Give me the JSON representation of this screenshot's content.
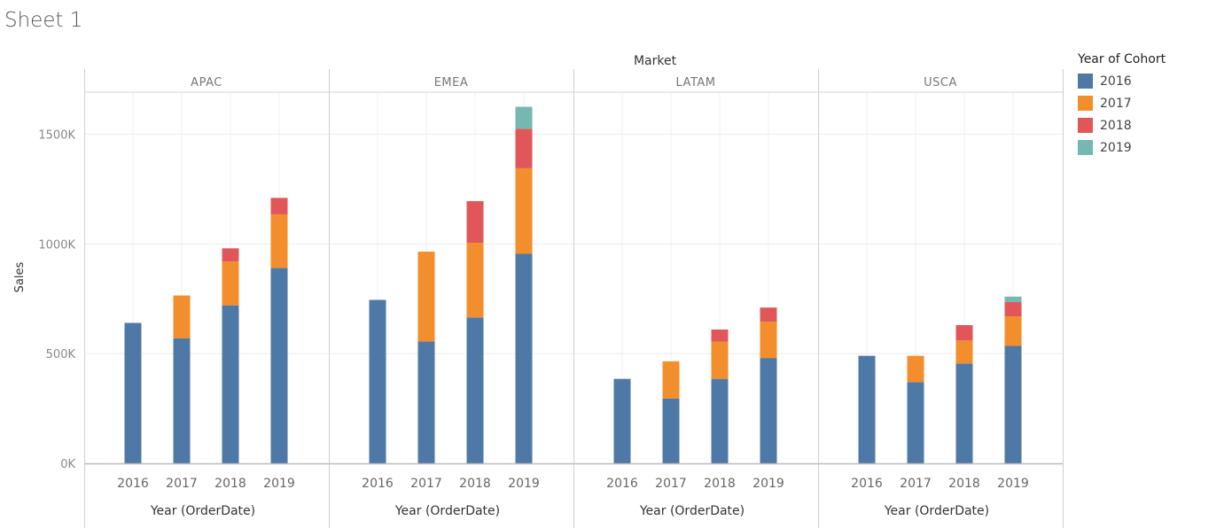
{
  "sheet_title": "Sheet 1",
  "legend": {
    "title": "Year of Cohort",
    "items": [
      {
        "label": "2016",
        "color": "#4e79a7"
      },
      {
        "label": "2017",
        "color": "#f28e2b"
      },
      {
        "label": "2018",
        "color": "#e15759"
      },
      {
        "label": "2019",
        "color": "#76b7b2"
      }
    ]
  },
  "chart_data": {
    "type": "bar",
    "stacked": true,
    "title": "Sheet 1",
    "column_header": "Market",
    "xlabel": "Year (OrderDate)",
    "ylabel": "Sales",
    "ylim": [
      0,
      1700000
    ],
    "yticks": [
      {
        "value": 0,
        "label": "0K"
      },
      {
        "value": 500000,
        "label": "500K"
      },
      {
        "value": 1000000,
        "label": "1000K"
      },
      {
        "value": 1500000,
        "label": "1500K"
      }
    ],
    "categories": [
      "2016",
      "2017",
      "2018",
      "2019"
    ],
    "cohorts": [
      "2016",
      "2017",
      "2018",
      "2019"
    ],
    "colors": [
      "#4e79a7",
      "#f28e2b",
      "#e15759",
      "#76b7b2"
    ],
    "panels": [
      {
        "market": "APAC",
        "values": [
          [
            640000,
            0,
            0,
            0
          ],
          [
            570000,
            195000,
            0,
            0
          ],
          [
            720000,
            200000,
            60000,
            0
          ],
          [
            890000,
            245000,
            75000,
            0
          ]
        ]
      },
      {
        "market": "EMEA",
        "values": [
          [
            745000,
            0,
            0,
            0
          ],
          [
            555000,
            410000,
            0,
            0
          ],
          [
            665000,
            340000,
            190000,
            0
          ],
          [
            955000,
            390000,
            180000,
            100000
          ]
        ]
      },
      {
        "market": "LATAM",
        "values": [
          [
            385000,
            0,
            0,
            0
          ],
          [
            295000,
            170000,
            0,
            0
          ],
          [
            385000,
            170000,
            55000,
            0
          ],
          [
            480000,
            165000,
            65000,
            0
          ]
        ]
      },
      {
        "market": "USCA",
        "values": [
          [
            490000,
            0,
            0,
            0
          ],
          [
            370000,
            120000,
            0,
            0
          ],
          [
            455000,
            105000,
            70000,
            0
          ],
          [
            535000,
            135000,
            65000,
            25000
          ]
        ]
      }
    ]
  }
}
